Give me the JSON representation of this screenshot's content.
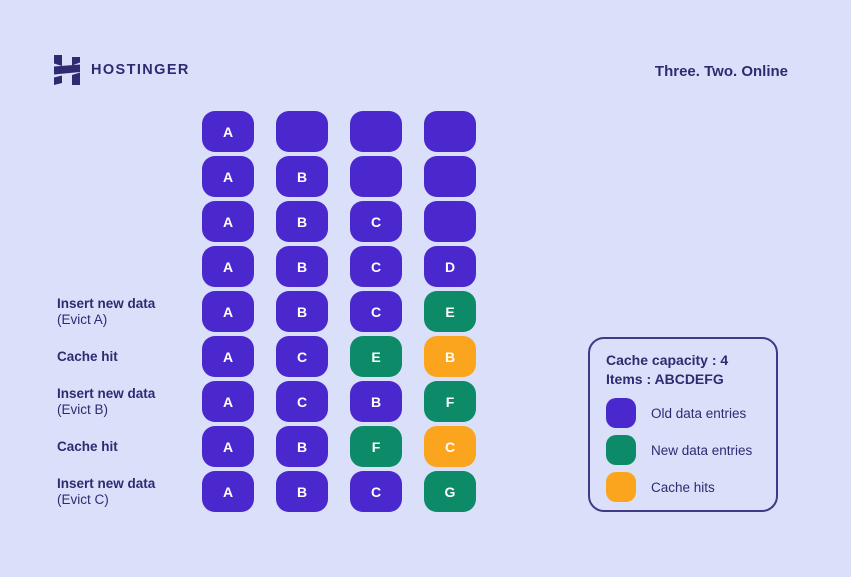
{
  "header": {
    "brand": "HOSTINGER",
    "tagline": "Three. Two. Online"
  },
  "colors": {
    "background": "#DBE0FA",
    "old": "#4B27CE",
    "new": "#0D8A68",
    "hit": "#FBA51F",
    "text": "#2F2A71",
    "legend_border": "#3F3A85"
  },
  "diagram": {
    "rows": [
      {
        "label_lines": [],
        "cells": [
          {
            "letter": "A",
            "type": "old"
          },
          {
            "letter": "",
            "type": "old"
          },
          {
            "letter": "",
            "type": "old"
          },
          {
            "letter": "",
            "type": "old"
          }
        ]
      },
      {
        "label_lines": [],
        "cells": [
          {
            "letter": "A",
            "type": "old"
          },
          {
            "letter": "B",
            "type": "old"
          },
          {
            "letter": "",
            "type": "old"
          },
          {
            "letter": "",
            "type": "old"
          }
        ]
      },
      {
        "label_lines": [],
        "cells": [
          {
            "letter": "A",
            "type": "old"
          },
          {
            "letter": "B",
            "type": "old"
          },
          {
            "letter": "C",
            "type": "old"
          },
          {
            "letter": "",
            "type": "old"
          }
        ]
      },
      {
        "label_lines": [],
        "cells": [
          {
            "letter": "A",
            "type": "old"
          },
          {
            "letter": "B",
            "type": "old"
          },
          {
            "letter": "C",
            "type": "old"
          },
          {
            "letter": "D",
            "type": "old"
          }
        ]
      },
      {
        "label_lines": [
          "Insert new data",
          "(Evict A)"
        ],
        "cells": [
          {
            "letter": "A",
            "type": "old"
          },
          {
            "letter": "B",
            "type": "old"
          },
          {
            "letter": "C",
            "type": "old"
          },
          {
            "letter": "E",
            "type": "new"
          }
        ]
      },
      {
        "label_lines": [
          "Cache hit"
        ],
        "cells": [
          {
            "letter": "A",
            "type": "old"
          },
          {
            "letter": "C",
            "type": "old"
          },
          {
            "letter": "E",
            "type": "new"
          },
          {
            "letter": "B",
            "type": "hit"
          }
        ]
      },
      {
        "label_lines": [
          "Insert new data",
          "(Evict B)"
        ],
        "cells": [
          {
            "letter": "A",
            "type": "old"
          },
          {
            "letter": "C",
            "type": "old"
          },
          {
            "letter": "B",
            "type": "old"
          },
          {
            "letter": "F",
            "type": "new"
          }
        ]
      },
      {
        "label_lines": [
          "Cache hit"
        ],
        "cells": [
          {
            "letter": "A",
            "type": "old"
          },
          {
            "letter": "B",
            "type": "old"
          },
          {
            "letter": "F",
            "type": "new"
          },
          {
            "letter": "C",
            "type": "hit"
          }
        ]
      },
      {
        "label_lines": [
          "Insert new data",
          "(Evict C)"
        ],
        "cells": [
          {
            "letter": "A",
            "type": "old"
          },
          {
            "letter": "B",
            "type": "old"
          },
          {
            "letter": "C",
            "type": "old"
          },
          {
            "letter": "G",
            "type": "new"
          }
        ]
      }
    ]
  },
  "legend": {
    "title_lines": [
      "Cache capacity : 4",
      "Items : ABCDEFG"
    ],
    "items": [
      {
        "label": "Old data entries",
        "type": "old"
      },
      {
        "label": "New data entries",
        "type": "new"
      },
      {
        "label": "Cache hits",
        "type": "hit"
      }
    ]
  }
}
